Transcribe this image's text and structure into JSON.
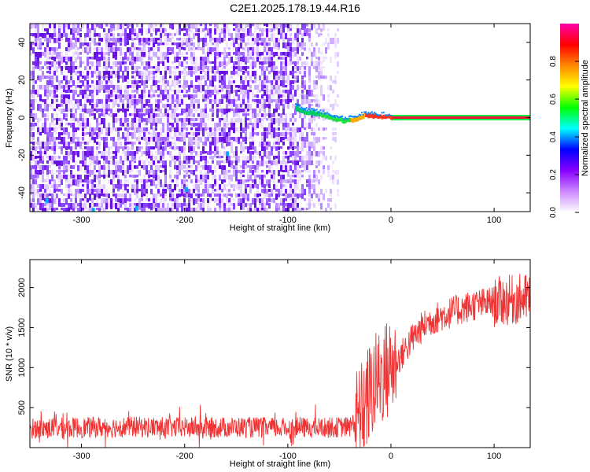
{
  "title": "C2E1.2025.178.19.44.R16",
  "chart_data": [
    {
      "type": "heatmap",
      "xlabel": "Height of straight line (km)",
      "ylabel": "Frequency (Hz)",
      "xlim": [
        -350,
        135
      ],
      "ylim": [
        -50,
        50
      ],
      "xticks": [
        -300,
        -200,
        -100,
        0,
        100
      ],
      "yticks": [
        -40,
        -20,
        0,
        20,
        40
      ],
      "noise_region_x": [
        -350,
        -52
      ],
      "signal_track": [
        {
          "x": -93,
          "y": 5
        },
        {
          "x": -85,
          "y": 3
        },
        {
          "x": -75,
          "y": 2
        },
        {
          "x": -65,
          "y": 1
        },
        {
          "x": -55,
          "y": -1
        },
        {
          "x": -45,
          "y": -2
        },
        {
          "x": -35,
          "y": -1
        },
        {
          "x": -25,
          "y": 1
        },
        {
          "x": -15,
          "y": 0.5
        },
        {
          "x": 0,
          "y": 0
        },
        {
          "x": 135,
          "y": 0
        }
      ],
      "colorbar": {
        "label": "Normalized spectral amplitude",
        "range": [
          0,
          1
        ],
        "ticks": [
          0.0,
          0.2,
          0.4,
          0.6,
          0.8
        ],
        "colors": [
          "#ffffff",
          "#cc88ff",
          "#8800ff",
          "#0000ff",
          "#00ffff",
          "#00ff00",
          "#ffff00",
          "#ff8800",
          "#ff0000",
          "#ff00aa"
        ]
      },
      "grid": false
    },
    {
      "type": "line",
      "xlabel": "Height of straight line (km)",
      "ylabel": "SNR (10 * v/v)",
      "xlim": [
        -350,
        135
      ],
      "ylim": [
        0,
        2350
      ],
      "xticks": [
        -300,
        -200,
        -100,
        0,
        100
      ],
      "yticks": [
        500,
        1000,
        1500,
        2000
      ],
      "color": "#f03232",
      "series": [
        {
          "x": [
            -350,
            -300,
            -250,
            -200,
            -150,
            -100,
            -60,
            -40,
            -30,
            -20,
            -10,
            0,
            10,
            20,
            30,
            40,
            60,
            80,
            100,
            120,
            135
          ],
          "y": [
            240,
            250,
            260,
            250,
            255,
            245,
            250,
            260,
            400,
            700,
            900,
            1000,
            1150,
            1350,
            1500,
            1600,
            1700,
            1780,
            1820,
            1850,
            1870
          ]
        }
      ],
      "grid": false
    }
  ]
}
